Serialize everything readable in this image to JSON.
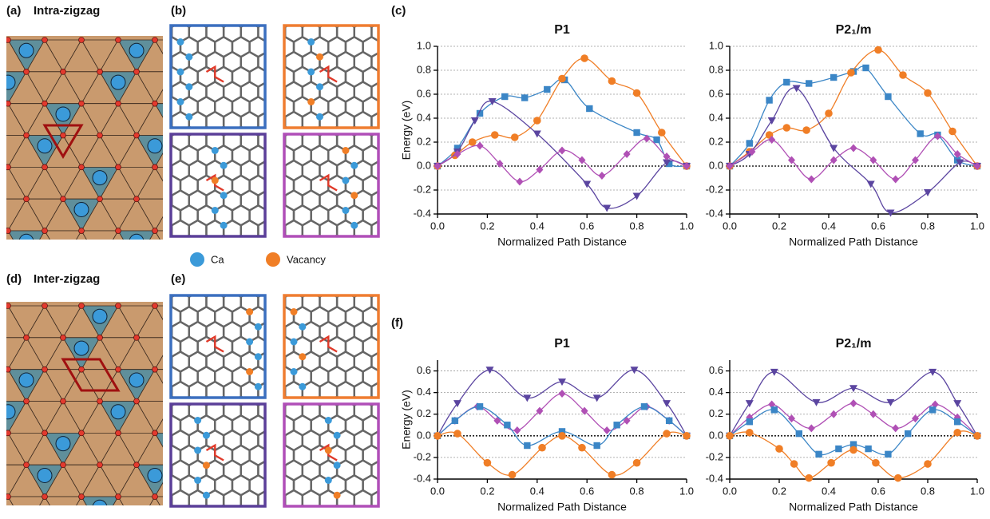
{
  "figure": {
    "panel_a": "(a)",
    "title_a": "Intra-zigzag",
    "panel_b": "(b)",
    "panel_c": "(c)",
    "panel_d": "(d)",
    "title_d": "Inter-zigzag",
    "panel_e": "(e)",
    "panel_f": "(f)",
    "legend_ca": "Ca",
    "legend_vacancy": "Vacancy"
  },
  "chart_data": [
    {
      "type": "line",
      "title": "P1",
      "xlabel": "Normalized Path Distance",
      "ylabel": "Energy (eV)",
      "xlim": [
        0,
        1
      ],
      "ylim": [
        -0.4,
        1.0
      ],
      "xticks": [
        {
          "value": 0,
          "label": "0.0"
        },
        0.2,
        0.4,
        0.6,
        0.8,
        {
          "value": 1,
          "label": "1.0"
        }
      ],
      "yticks": [
        -0.4,
        -0.2,
        {
          "value": 0,
          "label": "0.0"
        },
        0.2,
        0.4,
        0.6,
        0.8,
        {
          "value": 1,
          "label": "1.0"
        }
      ],
      "grid": true,
      "zero_line": 0,
      "series": [
        {
          "color": "#3b86c6",
          "marker": "square",
          "x": [
            0,
            0.08,
            0.17,
            0.27,
            0.35,
            0.44,
            0.51,
            0.61,
            0.8,
            0.88,
            0.93,
            1
          ],
          "values": [
            0,
            0.15,
            0.44,
            0.58,
            0.57,
            0.64,
            0.72,
            0.48,
            0.28,
            0.22,
            0.02,
            0
          ]
        },
        {
          "color": "#f07e26",
          "marker": "circle",
          "x": [
            0,
            0.07,
            0.14,
            0.23,
            0.31,
            0.4,
            0.5,
            0.59,
            0.7,
            0.8,
            0.9,
            1
          ],
          "values": [
            0,
            0.09,
            0.2,
            0.26,
            0.24,
            0.38,
            0.73,
            0.9,
            0.71,
            0.61,
            0.28,
            0
          ]
        },
        {
          "color": "#5b45a0",
          "marker": "triangle-down",
          "x": [
            0,
            0.08,
            0.15,
            0.22,
            0.4,
            0.6,
            0.68,
            0.8,
            0.92,
            1
          ],
          "values": [
            0,
            0.12,
            0.38,
            0.54,
            0.27,
            -0.15,
            -0.35,
            -0.25,
            0.03,
            0
          ]
        },
        {
          "color": "#b050b5",
          "marker": "diamond",
          "x": [
            0,
            0.08,
            0.17,
            0.25,
            0.33,
            0.41,
            0.5,
            0.58,
            0.66,
            0.76,
            0.84,
            0.92,
            1
          ],
          "values": [
            0,
            0.1,
            0.17,
            0.02,
            -0.13,
            -0.03,
            0.13,
            0.05,
            -0.08,
            0.1,
            0.23,
            0.08,
            0
          ]
        }
      ]
    },
    {
      "type": "line",
      "title": "P2₁/m",
      "xlabel": "Normalized Path Distance",
      "xlim": [
        0,
        1
      ],
      "ylim": [
        -0.4,
        1.0
      ],
      "xticks": [
        {
          "value": 0,
          "label": "0.0"
        },
        0.2,
        0.4,
        0.6,
        0.8,
        {
          "value": 1,
          "label": "1.0"
        }
      ],
      "yticks": [
        -0.4,
        -0.2,
        {
          "value": 0,
          "label": "0.0"
        },
        0.2,
        0.4,
        0.6,
        0.8,
        {
          "value": 1,
          "label": "1.0"
        }
      ],
      "grid": true,
      "zero_line": 0,
      "series": [
        {
          "color": "#3b86c6",
          "marker": "square",
          "x": [
            0,
            0.08,
            0.16,
            0.23,
            0.32,
            0.42,
            0.5,
            0.55,
            0.64,
            0.77,
            0.84,
            0.92,
            1
          ],
          "values": [
            0,
            0.19,
            0.55,
            0.7,
            0.69,
            0.74,
            0.79,
            0.82,
            0.58,
            0.27,
            0.26,
            0.05,
            0
          ]
        },
        {
          "color": "#f07e26",
          "marker": "circle",
          "x": [
            0,
            0.08,
            0.16,
            0.23,
            0.31,
            0.4,
            0.49,
            0.6,
            0.7,
            0.8,
            0.9,
            1
          ],
          "values": [
            0,
            0.12,
            0.26,
            0.32,
            0.3,
            0.44,
            0.78,
            0.97,
            0.76,
            0.61,
            0.29,
            0
          ]
        },
        {
          "color": "#5b45a0",
          "marker": "triangle-down",
          "x": [
            0,
            0.08,
            0.17,
            0.27,
            0.42,
            0.57,
            0.65,
            0.8,
            0.93,
            1
          ],
          "values": [
            0,
            0.1,
            0.38,
            0.65,
            0.15,
            -0.15,
            -0.39,
            -0.22,
            0.03,
            0
          ]
        },
        {
          "color": "#b050b5",
          "marker": "diamond",
          "x": [
            0,
            0.09,
            0.17,
            0.25,
            0.33,
            0.42,
            0.5,
            0.58,
            0.67,
            0.75,
            0.84,
            0.92,
            1
          ],
          "values": [
            0,
            0.12,
            0.22,
            0.05,
            -0.11,
            0.05,
            0.15,
            0.05,
            -0.11,
            0.05,
            0.25,
            0.1,
            0
          ]
        }
      ]
    },
    {
      "type": "line",
      "title": "P1",
      "xlabel": "Normalized Path Distance",
      "ylabel": "Energy (eV)",
      "xlim": [
        0,
        1
      ],
      "ylim": [
        -0.4,
        0.7
      ],
      "xticks": [
        {
          "value": 0,
          "label": "0.0"
        },
        0.2,
        0.4,
        0.6,
        0.8,
        {
          "value": 1,
          "label": "1.0"
        }
      ],
      "yticks": [
        -0.4,
        -0.2,
        {
          "value": 0,
          "label": "0.0"
        },
        0.2,
        0.4,
        0.6
      ],
      "grid": true,
      "zero_line": 0,
      "series": [
        {
          "color": "#5b45a0",
          "marker": "triangle-down",
          "x": [
            0,
            0.08,
            0.21,
            0.36,
            0.5,
            0.64,
            0.79,
            0.92,
            1
          ],
          "values": [
            0,
            0.3,
            0.61,
            0.35,
            0.5,
            0.35,
            0.61,
            0.3,
            0
          ]
        },
        {
          "color": "#b050b5",
          "marker": "diamond",
          "x": [
            0,
            0.07,
            0.16,
            0.24,
            0.32,
            0.41,
            0.5,
            0.59,
            0.68,
            0.76,
            0.84,
            0.93,
            1
          ],
          "values": [
            0,
            0.14,
            0.27,
            0.14,
            0.05,
            0.23,
            0.39,
            0.23,
            0.05,
            0.14,
            0.27,
            0.14,
            0
          ]
        },
        {
          "color": "#3b86c6",
          "marker": "square",
          "x": [
            0,
            0.07,
            0.17,
            0.28,
            0.36,
            0.5,
            0.64,
            0.72,
            0.83,
            0.93,
            1
          ],
          "values": [
            0,
            0.14,
            0.27,
            0.1,
            -0.09,
            0.04,
            -0.09,
            0.1,
            0.27,
            0.14,
            0
          ]
        },
        {
          "color": "#f07e26",
          "marker": "circle",
          "x": [
            0,
            0.08,
            0.2,
            0.3,
            0.42,
            0.5,
            0.58,
            0.7,
            0.8,
            0.92,
            1
          ],
          "values": [
            0,
            0.02,
            -0.25,
            -0.36,
            -0.11,
            0,
            -0.11,
            -0.36,
            -0.25,
            0.02,
            0
          ]
        }
      ]
    },
    {
      "type": "line",
      "title": "P2₁/m",
      "xlabel": "Normalized Path Distance",
      "xlim": [
        0,
        1
      ],
      "ylim": [
        -0.4,
        0.7
      ],
      "xticks": [
        {
          "value": 0,
          "label": "0.0"
        },
        0.2,
        0.4,
        0.6,
        0.8,
        {
          "value": 1,
          "label": "1.0"
        }
      ],
      "yticks": [
        -0.4,
        -0.2,
        {
          "value": 0,
          "label": "0.0"
        },
        0.2,
        0.4,
        0.6
      ],
      "grid": true,
      "zero_line": 0,
      "series": [
        {
          "color": "#5b45a0",
          "marker": "triangle-down",
          "x": [
            0,
            0.08,
            0.18,
            0.35,
            0.5,
            0.65,
            0.82,
            0.92,
            1
          ],
          "values": [
            0,
            0.3,
            0.59,
            0.31,
            0.44,
            0.31,
            0.59,
            0.3,
            0
          ]
        },
        {
          "color": "#b050b5",
          "marker": "diamond",
          "x": [
            0,
            0.08,
            0.17,
            0.25,
            0.33,
            0.42,
            0.5,
            0.58,
            0.67,
            0.75,
            0.83,
            0.92,
            1
          ],
          "values": [
            0,
            0.17,
            0.29,
            0.16,
            0.07,
            0.2,
            0.3,
            0.2,
            0.07,
            0.16,
            0.29,
            0.17,
            0
          ]
        },
        {
          "color": "#3b86c6",
          "marker": "square",
          "x": [
            0,
            0.08,
            0.18,
            0.28,
            0.36,
            0.44,
            0.5,
            0.56,
            0.64,
            0.72,
            0.82,
            0.92,
            1
          ],
          "values": [
            0,
            0.13,
            0.24,
            0.02,
            -0.17,
            -0.12,
            -0.08,
            -0.12,
            -0.17,
            0.02,
            0.24,
            0.13,
            0
          ]
        },
        {
          "color": "#f07e26",
          "marker": "circle",
          "x": [
            0,
            0.08,
            0.2,
            0.26,
            0.32,
            0.41,
            0.5,
            0.59,
            0.68,
            0.8,
            0.92,
            1
          ],
          "values": [
            0,
            0.03,
            -0.12,
            -0.26,
            -0.39,
            -0.25,
            -0.13,
            -0.25,
            -0.39,
            -0.26,
            0.03,
            0
          ]
        }
      ]
    }
  ]
}
